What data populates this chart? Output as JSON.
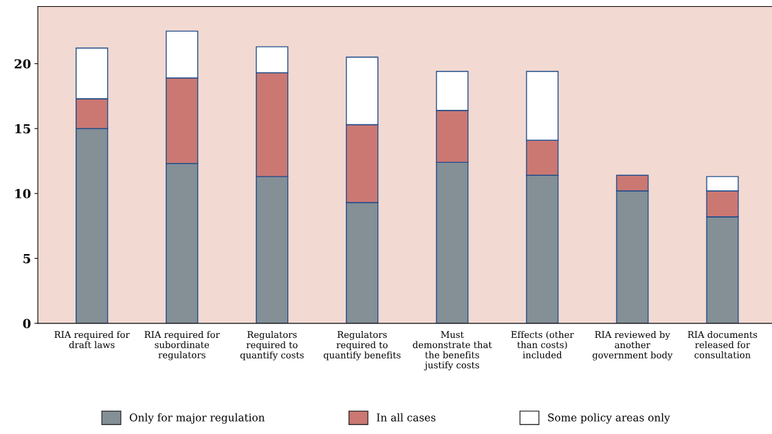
{
  "chart_data": {
    "type": "bar",
    "stacked": true,
    "categories": [
      "RIA required for\ndraft laws",
      "RIA required for\nsubordinate\nregulators",
      "Regulators\nrequired to\nquantify costs",
      "Regulators\nrequired to\nquantify benefits",
      "Must\ndemonstrate that\nthe benefits\njustify costs",
      "Effects (other\nthan costs)\nincluded",
      "RIA reviewed by\nanother\ngovernment body",
      "RIA documents\nreleased for\nconsultation"
    ],
    "series": [
      {
        "name": "Only for major regulation",
        "color": "#848f96",
        "values": [
          15.0,
          12.3,
          11.3,
          9.3,
          12.4,
          11.4,
          10.2,
          8.2
        ]
      },
      {
        "name": "In all cases",
        "color": "#cb7873",
        "values": [
          2.3,
          6.6,
          8.0,
          6.0,
          4.0,
          2.7,
          1.2,
          2.0
        ]
      },
      {
        "name": "Some policy areas only",
        "color": "#ffffff",
        "values": [
          3.9,
          3.6,
          2.0,
          5.2,
          3.0,
          5.3,
          null,
          1.1
        ]
      }
    ],
    "ylim": [
      0,
      24.4
    ],
    "yticks": [
      0,
      5,
      10,
      15,
      20
    ],
    "grid": false,
    "legend": "bottom"
  }
}
